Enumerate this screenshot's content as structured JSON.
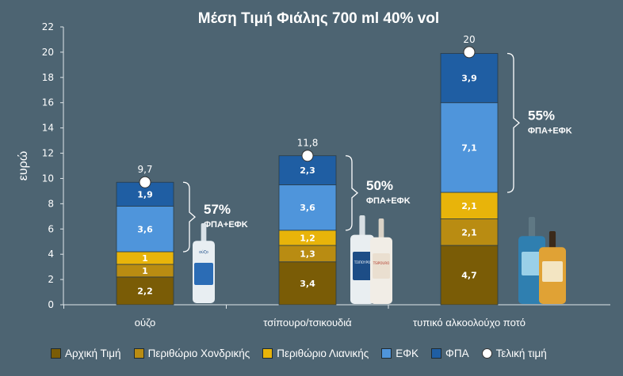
{
  "chart_data": {
    "type": "bar",
    "stacked": true,
    "title": "Μέση Τιμή Φιάλης 700 ml  40% vol",
    "ylabel": "ευρώ",
    "xlabel": "",
    "ylim": [
      0,
      22
    ],
    "yticks": [
      0,
      2,
      4,
      6,
      8,
      10,
      12,
      14,
      16,
      18,
      20,
      22
    ],
    "grid": false,
    "legend_position": "bottom",
    "categories": [
      "ούζο",
      "τσίπουρο/τσικουδιά",
      "τυπικό αλκοολούχο ποτό"
    ],
    "series": [
      {
        "name": "Αρχική Τιμή",
        "color": "#7a5c06",
        "values": [
          2.2,
          3.4,
          4.7
        ],
        "labels": [
          "2,2",
          "3,4",
          "4,7"
        ]
      },
      {
        "name": "Περιθώριο Χονδρικής",
        "color": "#b98c12",
        "values": [
          1,
          1.3,
          2.1
        ],
        "labels": [
          "1",
          "1,3",
          "2,1"
        ]
      },
      {
        "name": "Περιθώριο Λιανικής",
        "color": "#e8b40a",
        "values": [
          1,
          1.2,
          2.1
        ],
        "labels": [
          "1",
          "1,2",
          "2,1"
        ]
      },
      {
        "name": "ΕΦΚ",
        "color": "#4f95db",
        "values": [
          3.6,
          3.6,
          7.1
        ],
        "labels": [
          "3,6",
          "3,6",
          "7,1"
        ]
      },
      {
        "name": "ΦΠΑ",
        "color": "#1f5ea3",
        "values": [
          1.9,
          2.3,
          3.9
        ],
        "labels": [
          "1,9",
          "2,3",
          "3,9"
        ]
      }
    ],
    "final_price": {
      "name": "Τελική τιμή",
      "values": [
        9.7,
        11.8,
        20
      ],
      "labels": [
        "9,7",
        "11,8",
        "20"
      ]
    },
    "annotations": [
      {
        "percent": "57%",
        "text": "ΦΠΑ+ΕΦΚ"
      },
      {
        "percent": "50%",
        "text": "ΦΠΑ+ΕΦΚ"
      },
      {
        "percent": "55%",
        "text": "ΦΠΑ+ΕΦΚ"
      }
    ],
    "bottle_labels": {
      "ouzo": "ούζο",
      "tsipouro1": "ΤΣΙΠΟΥΡΟ",
      "tsipouro2": "TSIPOURO"
    }
  }
}
